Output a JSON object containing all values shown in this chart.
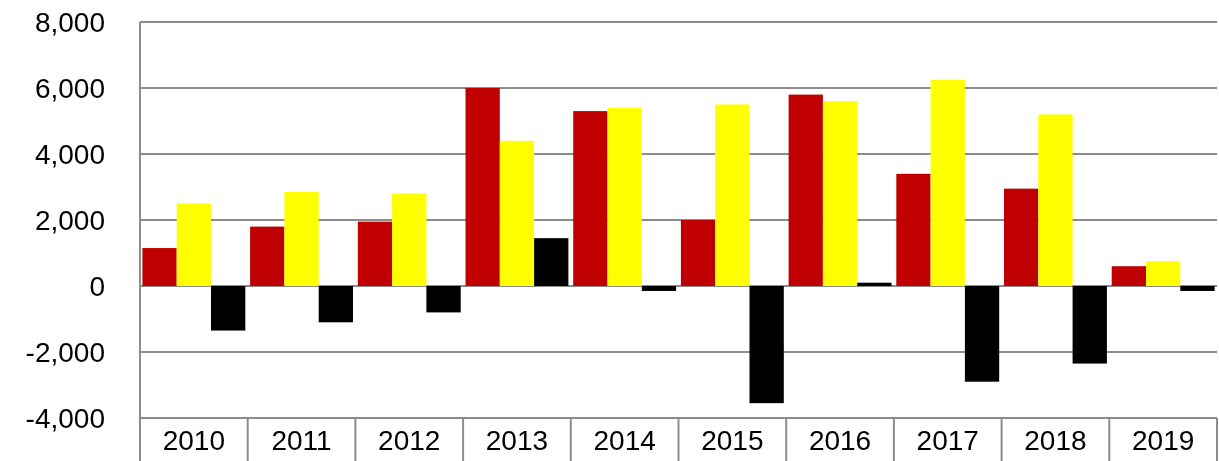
{
  "chart_data": {
    "type": "bar",
    "categories": [
      "2010",
      "2011",
      "2012",
      "2013",
      "2014",
      "2015",
      "2016",
      "2017",
      "2018",
      "2019"
    ],
    "series": [
      {
        "color": "#c00000",
        "values": [
          1150,
          1800,
          1950,
          6000,
          5300,
          2000,
          5800,
          3400,
          2950,
          600
        ]
      },
      {
        "color": "#ffff00",
        "values": [
          2500,
          2850,
          2800,
          4400,
          5400,
          5500,
          5600,
          6250,
          5200,
          750
        ]
      },
      {
        "color": "#000000",
        "values": [
          -1350,
          -1100,
          -800,
          1450,
          -150,
          -3550,
          100,
          -2900,
          -2350,
          -150
        ]
      }
    ],
    "ylim": [
      -4000,
      8000
    ],
    "yticks": [
      {
        "value": -4000,
        "label": "-4,000"
      },
      {
        "value": -2000,
        "label": "-2,000"
      },
      0,
      {
        "value": 2000,
        "label": "2,000"
      },
      {
        "value": 4000,
        "label": "4,000"
      },
      {
        "value": 6000,
        "label": "6,000"
      },
      {
        "value": 8000,
        "label": "8,000"
      }
    ],
    "grid": "y"
  }
}
